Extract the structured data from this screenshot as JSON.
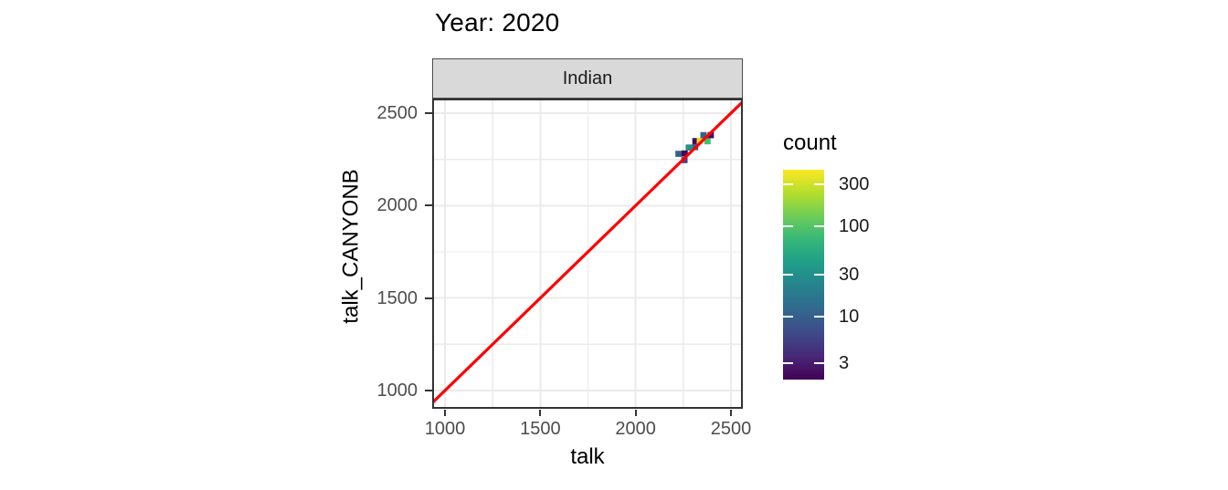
{
  "chart_data": {
    "type": "heatmap",
    "subtype": "2d-binned count plot (geom_bin2d) with identity reference line, single facet",
    "title": "Year: 2020",
    "facet": "Indian",
    "xlabel": "talk",
    "ylabel": "talk_CANYONB",
    "x_ticks": [
      "1000",
      "1500",
      "2000",
      "2500"
    ],
    "y_ticks": [
      "1000",
      "1500",
      "2000",
      "2500"
    ],
    "x_tick_values": [
      1000,
      1500,
      2000,
      2500
    ],
    "y_tick_values": [
      1000,
      1500,
      2000,
      2500
    ],
    "x_minor_ticks": [
      1250,
      1750,
      2250
    ],
    "y_minor_ticks": [
      1250,
      1750,
      2250
    ],
    "xlim": [
      933,
      2562
    ],
    "ylim": [
      901,
      2579
    ],
    "grid": "major + minor light-gray gridlines on white panel",
    "identity_line": {
      "slope": 1,
      "intercept": 0,
      "color": "#FF0000"
    },
    "binwidth": 33,
    "bins": [
      {
        "x": 2225,
        "y": 2280,
        "count": 10,
        "color": "#33638D"
      },
      {
        "x": 2257,
        "y": 2282,
        "count": 3,
        "color": "#46085C"
      },
      {
        "x": 2256,
        "y": 2246,
        "count": 5,
        "color": "#414487"
      },
      {
        "x": 2279,
        "y": 2314,
        "count": 30,
        "color": "#21918C"
      },
      {
        "x": 2312,
        "y": 2316,
        "count": 10,
        "color": "#33638D"
      },
      {
        "x": 2314,
        "y": 2349,
        "count": 3,
        "color": "#46085C"
      },
      {
        "x": 2337,
        "y": 2350,
        "count": 300,
        "color": "#DDE318"
      },
      {
        "x": 2377,
        "y": 2348,
        "count": 100,
        "color": "#44BF70"
      },
      {
        "x": 2356,
        "y": 2381,
        "count": 10,
        "color": "#33638D"
      },
      {
        "x": 2394,
        "y": 2381,
        "count": 3,
        "color": "#46085C"
      }
    ],
    "legend": {
      "title": "count",
      "scale": "log (viridis colorbar)",
      "position": "right",
      "breaks": [
        {
          "label": "300",
          "pos": 0.0696
        },
        {
          "label": "100",
          "pos": 0.2696
        },
        {
          "label": "30",
          "pos": 0.5
        },
        {
          "label": "10",
          "pos": 0.7
        },
        {
          "label": "3",
          "pos": 0.9217
        }
      ],
      "viridis_stops_low_to_high": [
        "#440154",
        "#482878",
        "#3E4A89",
        "#31688E",
        "#26828E",
        "#1F9E89",
        "#35B779",
        "#6DCD59",
        "#B4DE2C",
        "#FDE725"
      ]
    },
    "colors": {
      "identity_line": "#FF0000",
      "gridline": "#EBEBEB",
      "panel_border": "#333333",
      "strip_fill": "#D9D9D9",
      "strip_border": "#4D4D4D",
      "axis_tick": "#333333",
      "tick_label": "#4D4D4D",
      "text": "#000000"
    }
  }
}
